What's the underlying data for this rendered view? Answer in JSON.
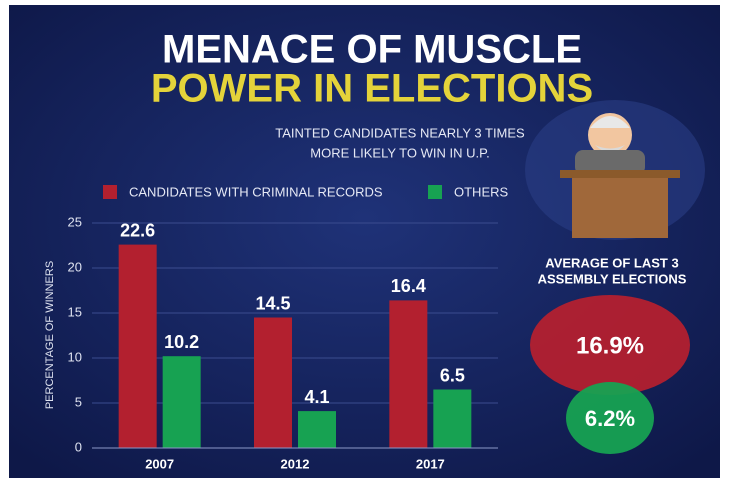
{
  "chart_data": {
    "type": "bar",
    "title": [
      "MENACE OF MUSCLE",
      "POWER IN ELECTIONS"
    ],
    "subtitle": [
      "TAINTED CANDIDATES NEARLY 3 TIMES",
      "MORE LIKELY TO WIN IN U.P."
    ],
    "y_label": "PERCENTAGE OF WINNERS",
    "categories": [
      "2007",
      "2012",
      "2017"
    ],
    "series": [
      {
        "name": "CANDIDATES WITH CRIMINAL RECORDS",
        "color": "#b3202f",
        "values": [
          22.6,
          14.5,
          16.4
        ]
      },
      {
        "name": "OTHERS",
        "color": "#17a252",
        "values": [
          10.2,
          4.1,
          6.5
        ]
      }
    ],
    "ylim": [
      0,
      25
    ],
    "yticks": [
      0,
      5,
      10,
      15,
      20,
      25
    ],
    "grid": true
  },
  "average": {
    "title": [
      "AVERAGE OF LAST 3",
      "ASSEMBLY ELECTIONS"
    ],
    "items": [
      {
        "text": "16.9%",
        "color": "#b3202f"
      },
      {
        "text": "6.2%",
        "color": "#17a252"
      }
    ]
  }
}
